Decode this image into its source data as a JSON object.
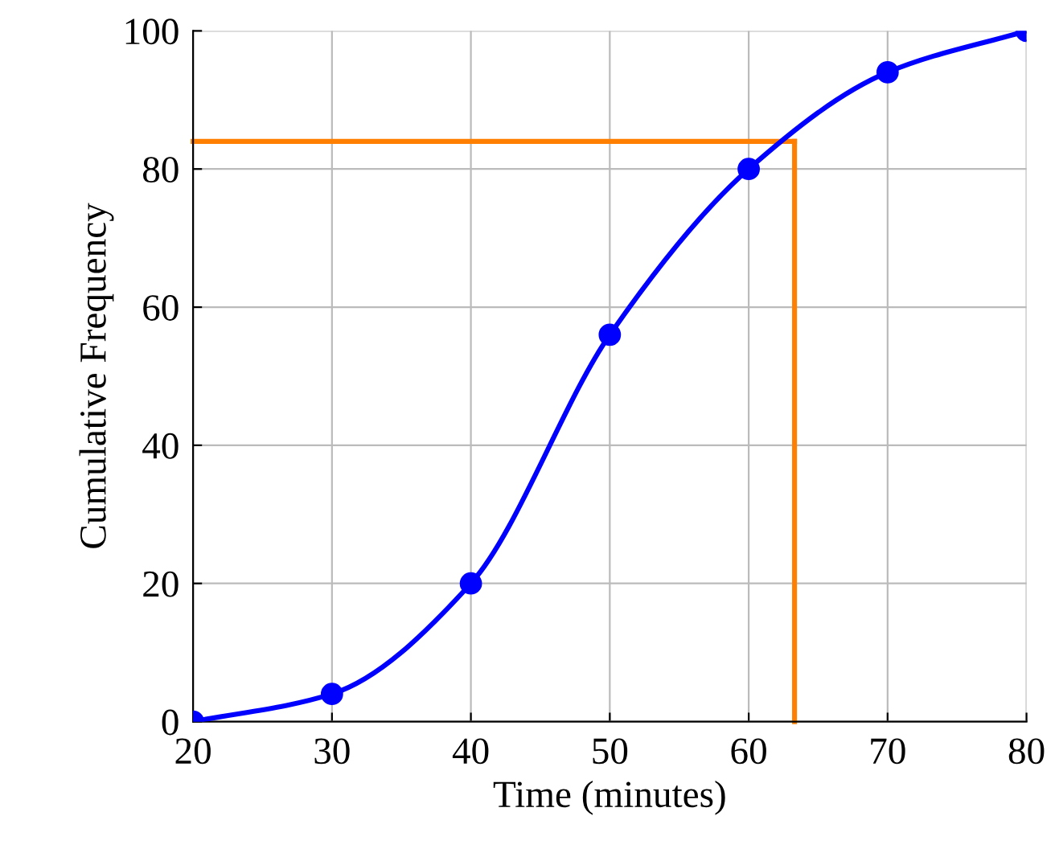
{
  "chart_data": {
    "type": "line",
    "xlabel": "Time (minutes)",
    "ylabel": "Cumulative Frequency",
    "x": [
      20,
      30,
      40,
      50,
      60,
      70,
      80
    ],
    "series": [
      {
        "color": "#0000ff",
        "values": [
          0,
          4,
          20,
          56,
          80,
          94,
          100
        ]
      }
    ],
    "marker": "circle",
    "ref_lines": [
      {
        "axis": "y",
        "value": 84,
        "color": "#ff8000"
      },
      {
        "axis": "x",
        "value": 63.3,
        "color": "#ff8000"
      }
    ],
    "xlim": [
      20,
      80
    ],
    "xticks": [
      20,
      30,
      40,
      50,
      60,
      70,
      80
    ],
    "ylim": [
      0,
      100
    ],
    "yticks": [
      0,
      20,
      40,
      60,
      80,
      100
    ],
    "grid": true,
    "line_style": "solid"
  }
}
